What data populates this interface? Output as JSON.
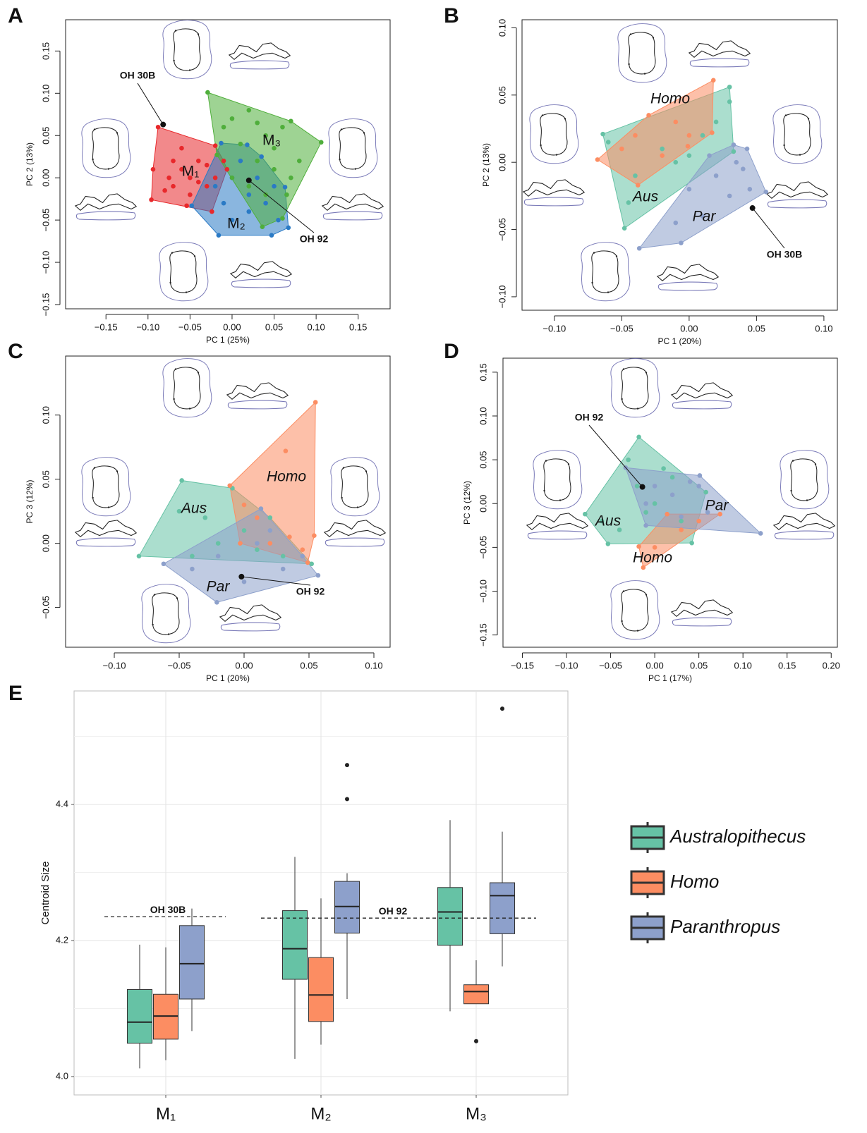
{
  "chart_data": [
    {
      "type": "scatter",
      "panel": "A",
      "xlabel": "PC 1 (25%)",
      "ylabel": "PC 2 (13%)",
      "xlim": [
        -0.198,
        0.188
      ],
      "ylim": [
        -0.155,
        0.187
      ],
      "xticks": [
        {
          "value": -0.15,
          "label": "−0.15"
        },
        {
          "value": -0.1,
          "label": "−0.10"
        },
        {
          "value": -0.05,
          "label": "−0.05"
        },
        {
          "value": 0,
          "label": "0.00"
        },
        0.05,
        {
          "value": 0.1,
          "label": "0.10"
        },
        0.15
      ],
      "yticks": [
        {
          "value": -0.15,
          "label": "−0.15"
        },
        {
          "value": -0.1,
          "label": "−0.10"
        },
        {
          "value": -0.05,
          "label": "−0.05"
        },
        {
          "value": 0,
          "label": "0.00"
        },
        0.05,
        {
          "value": 0.1,
          "label": "0.10"
        },
        0.15
      ],
      "series": [
        {
          "name": "M₁",
          "color": "#e8282b",
          "x": [
            -0.088,
            -0.02,
            -0.006,
            -0.024,
            -0.054,
            -0.096,
            -0.094,
            -0.07,
            -0.06,
            -0.05,
            -0.07,
            -0.04,
            -0.05,
            -0.03,
            -0.08,
            -0.06,
            -0.04,
            -0.02,
            -0.01,
            -0.075,
            -0.03
          ],
          "y": [
            0.06,
            0.038,
            0.01,
            -0.04,
            -0.033,
            -0.026,
            0.01,
            0.02,
            0.01,
            0.0,
            -0.01,
            0.02,
            -0.02,
            -0.01,
            -0.015,
            0.035,
            -0.005,
            0.0,
            0.02,
            0.0,
            0.015
          ]
        },
        {
          "name": "M₂",
          "color": "#2a7ac5",
          "x": [
            -0.048,
            -0.013,
            0.018,
            0.063,
            0.067,
            0.047,
            -0.016,
            0,
            0.02,
            0.04,
            0.01,
            0.03,
            -0.01,
            0.05,
            0,
            0.02,
            0.055,
            -0.02,
            0.035
          ],
          "y": [
            -0.033,
            0.041,
            0.039,
            -0.011,
            -0.059,
            -0.068,
            -0.068,
            0,
            -0.02,
            -0.03,
            0.02,
            0,
            -0.03,
            -0.01,
            -0.05,
            -0.04,
            -0.05,
            -0.01,
            0.025
          ]
        },
        {
          "name": "M₃",
          "color": "#4fae3b",
          "x": [
            -0.029,
            0.07,
            0.106,
            0.06,
            0.036,
            -0.018,
            0,
            0.02,
            0.04,
            0.06,
            0.03,
            0.05,
            0.07,
            0.01,
            0.02,
            0.04,
            0.08,
            0,
            0.05,
            0.065,
            -0.01,
            0.03
          ],
          "y": [
            0.101,
            0.067,
            0.042,
            -0.048,
            -0.058,
            0.027,
            0.07,
            0.08,
            0.05,
            0.06,
            0.02,
            0.01,
            0,
            0.04,
            -0.01,
            -0.02,
            0.02,
            0,
            0.035,
            -0.02,
            0.06,
            0.065
          ]
        }
      ],
      "annotations": [
        {
          "text": "OH 30B",
          "x": -0.082,
          "y": 0.063
        },
        {
          "text": "OH 92",
          "x": 0.02,
          "y": -0.003
        }
      ]
    },
    {
      "type": "scatter",
      "panel": "B",
      "xlabel": "PC 1 (20%)",
      "ylabel": "PC 2 (13%)",
      "xlim": [
        -0.124,
        0.11
      ],
      "ylim": [
        -0.11,
        0.106
      ],
      "xticks": [
        {
          "value": -0.1,
          "label": "−0.10"
        },
        {
          "value": -0.05,
          "label": "−0.05"
        },
        {
          "value": 0,
          "label": "0.00"
        },
        0.05,
        {
          "value": 0.1,
          "label": "0.10"
        }
      ],
      "yticks": [
        {
          "value": -0.1,
          "label": "−0.10"
        },
        {
          "value": -0.05,
          "label": "−0.05"
        },
        {
          "value": 0,
          "label": "0.00"
        },
        0.05,
        {
          "value": 0.1,
          "label": "0.10"
        }
      ],
      "series": [
        {
          "name": "Aus",
          "color": "#66c2a5",
          "x": [
            -0.064,
            0.03,
            0.033,
            -0.048,
            -0.06,
            -0.02,
            -0.01,
            0.01,
            0.02,
            -0.04,
            -0.045,
            0,
            0.03
          ],
          "y": [
            0.021,
            0.056,
            0.008,
            -0.049,
            0.015,
            0.01,
            0,
            0.02,
            0.03,
            -0.01,
            -0.03,
            0.005,
            0.045
          ]
        },
        {
          "name": "Homo",
          "color": "#fc8d62",
          "x": [
            -0.068,
            0.018,
            0.017,
            -0.001,
            -0.038,
            -0.04,
            -0.03,
            -0.01,
            0,
            -0.05,
            -0.02
          ],
          "y": [
            0.002,
            0.061,
            0.022,
            0.012,
            -0.017,
            0.02,
            0.035,
            0.03,
            0.02,
            0.01,
            0.005
          ]
        },
        {
          "name": "Par",
          "color": "#8da0cb",
          "x": [
            -0.037,
            0.033,
            0.043,
            0.057,
            -0.006,
            0,
            0.02,
            0.03,
            0.04,
            0.01,
            0.045,
            0.015,
            -0.01,
            0.035
          ],
          "y": [
            -0.064,
            0.013,
            0.01,
            -0.022,
            -0.06,
            -0.02,
            -0.01,
            -0.025,
            -0.005,
            -0.04,
            -0.02,
            0.005,
            -0.045,
            0
          ]
        }
      ],
      "annotations": [
        {
          "text": "OH 30B",
          "x": 0.047,
          "y": -0.034
        }
      ]
    },
    {
      "type": "scatter",
      "panel": "C",
      "xlabel": "PC 1 (20%)",
      "ylabel": "PC 3 (12%)",
      "xlim": [
        -0.1375,
        0.1125
      ],
      "ylim": [
        -0.081,
        0.146
      ],
      "xticks": [
        {
          "value": -0.1,
          "label": "−0.10"
        },
        {
          "value": -0.05,
          "label": "−0.05"
        },
        {
          "value": 0,
          "label": "0.00"
        },
        0.05,
        {
          "value": 0.1,
          "label": "0.10"
        }
      ],
      "yticks": [
        {
          "value": -0.05,
          "label": "−0.05"
        },
        {
          "value": 0,
          "label": "0.00"
        },
        0.05,
        {
          "value": 0.1,
          "label": "0.10"
        }
      ],
      "series": [
        {
          "name": "Aus",
          "color": "#66c2a5",
          "x": [
            -0.048,
            -0.009,
            0.052,
            -0.081,
            -0.05,
            -0.03,
            -0.02,
            0,
            0.01,
            -0.04,
            0.02,
            0.03
          ],
          "y": [
            0.049,
            0.043,
            -0.016,
            -0.01,
            0.025,
            0.02,
            0,
            0.01,
            -0.005,
            -0.01,
            0.02,
            -0.01
          ]
        },
        {
          "name": "Homo",
          "color": "#fc8d62",
          "x": [
            0.055,
            -0.011,
            -0.003,
            0.049,
            0.054,
            0.032,
            0.01,
            0.02,
            0.035,
            0,
            0.045
          ],
          "y": [
            0.11,
            0.045,
            0,
            -0.015,
            0.006,
            0.072,
            0.02,
            0,
            0.005,
            0.03,
            -0.005
          ]
        },
        {
          "name": "Par",
          "color": "#8da0cb",
          "x": [
            -0.062,
            0.013,
            0.057,
            -0.021,
            -0.02,
            0,
            0.01,
            0.03,
            0.045,
            -0.04,
            0.02
          ],
          "y": [
            -0.016,
            0.027,
            -0.025,
            -0.046,
            -0.01,
            -0.03,
            0,
            -0.02,
            -0.01,
            -0.02,
            0.01
          ]
        }
      ],
      "annotations": [
        {
          "text": "OH 92",
          "x": -0.002,
          "y": -0.026
        }
      ]
    },
    {
      "type": "scatter",
      "panel": "D",
      "xlabel": "PC 1 (17%)",
      "ylabel": "PC 3 (12%)",
      "xlim": [
        -0.172,
        0.207
      ],
      "ylim": [
        -0.164,
        0.166
      ],
      "xticks": [
        {
          "value": -0.15,
          "label": "−0.15"
        },
        {
          "value": -0.1,
          "label": "−0.10"
        },
        {
          "value": -0.05,
          "label": "−0.05"
        },
        {
          "value": 0,
          "label": "0.00"
        },
        0.05,
        {
          "value": 0.1,
          "label": "0.10"
        },
        0.15,
        {
          "value": 0.2,
          "label": "0.20"
        }
      ],
      "yticks": [
        {
          "value": -0.15,
          "label": "−0.15"
        },
        {
          "value": -0.1,
          "label": "−0.10"
        },
        {
          "value": -0.05,
          "label": "−0.05"
        },
        {
          "value": 0,
          "label": "0.00"
        },
        0.05,
        {
          "value": 0.1,
          "label": "0.10"
        },
        0.15
      ],
      "series": [
        {
          "name": "Aus",
          "color": "#66c2a5",
          "x": [
            -0.018,
            0.058,
            0.042,
            -0.053,
            -0.079,
            -0.03,
            -0.02,
            0,
            0.02,
            0.03,
            -0.04,
            -0.01,
            0.01,
            -0.06
          ],
          "y": [
            0.076,
            0.013,
            -0.045,
            -0.046,
            -0.012,
            0.05,
            0.02,
            0,
            0.03,
            -0.02,
            -0.03,
            -0.01,
            0.04,
            -0.02
          ]
        },
        {
          "name": "Homo",
          "color": "#fc8d62",
          "x": [
            -0.013,
            0.074,
            0.014,
            -0.018,
            0,
            0.03,
            0.05
          ],
          "y": [
            -0.073,
            -0.012,
            -0.012,
            -0.049,
            -0.05,
            -0.03,
            -0.02
          ]
        },
        {
          "name": "Par",
          "color": "#8da0cb",
          "x": [
            -0.033,
            0.051,
            0.12,
            -0.01,
            0,
            0.02,
            0.05,
            0.06,
            -0.01,
            0.03,
            0.04
          ],
          "y": [
            0.041,
            0.032,
            -0.034,
            -0.025,
            0.02,
            0.01,
            0.02,
            -0.01,
            0,
            -0.015,
            0.025
          ]
        }
      ],
      "annotations": [
        {
          "text": "OH 92",
          "x": -0.014,
          "y": 0.019
        }
      ]
    },
    {
      "type": "box",
      "panel": "E",
      "ylabel": "Centroid Size",
      "categories": [
        "M₁",
        "M₂",
        "M₃"
      ],
      "ylim": [
        3.973,
        4.567
      ],
      "yticks": [
        {
          "value": 4,
          "label": "4.0"
        },
        4.2,
        4.4
      ],
      "minor_grid": [
        4.1,
        4.3,
        4.5
      ],
      "series": [
        {
          "name": "Australopithecus",
          "color": "#66c2a5",
          "boxes": [
            {
              "min": 4.012,
              "q1": 4.049,
              "median": 4.08,
              "q3": 4.128,
              "max": 4.194,
              "outliers": []
            },
            {
              "min": 4.026,
              "q1": 4.143,
              "median": 4.188,
              "q3": 4.244,
              "max": 4.323,
              "outliers": []
            },
            {
              "min": 4.096,
              "q1": 4.193,
              "median": 4.242,
              "q3": 4.278,
              "max": 4.377,
              "outliers": []
            }
          ]
        },
        {
          "name": "Homo",
          "color": "#fc8d62",
          "boxes": [
            {
              "min": 4.024,
              "q1": 4.055,
              "median": 4.089,
              "q3": 4.121,
              "max": 4.19,
              "outliers": []
            },
            {
              "min": 4.047,
              "q1": 4.081,
              "median": 4.12,
              "q3": 4.175,
              "max": 4.262,
              "outliers": []
            },
            {
              "min": 4.107,
              "q1": 4.107,
              "median": 4.125,
              "q3": 4.135,
              "max": 4.171,
              "outliers": [
                4.052
              ]
            }
          ]
        },
        {
          "name": "Paranthropus",
          "color": "#8da0cb",
          "boxes": [
            {
              "min": 4.067,
              "q1": 4.114,
              "median": 4.166,
              "q3": 4.222,
              "max": 4.247,
              "outliers": []
            },
            {
              "min": 4.114,
              "q1": 4.211,
              "median": 4.25,
              "q3": 4.287,
              "max": 4.299,
              "outliers": [
                4.458,
                4.408
              ]
            },
            {
              "min": 4.162,
              "q1": 4.21,
              "median": 4.266,
              "q3": 4.285,
              "max": 4.36,
              "outliers": [
                4.541
              ]
            }
          ]
        }
      ],
      "reference_lines": [
        {
          "text": "OH 30B",
          "value": 4.235
        },
        {
          "text": "OH 92",
          "value": 4.233
        }
      ]
    }
  ]
}
